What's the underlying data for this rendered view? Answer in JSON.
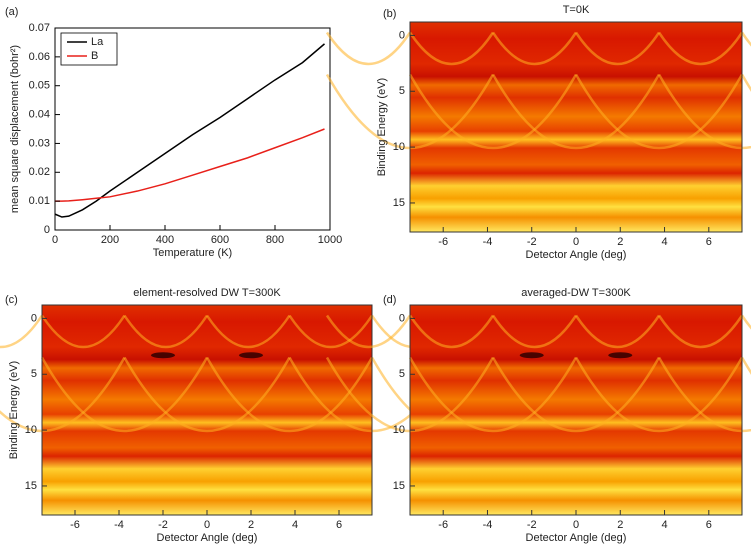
{
  "chart_data": [
    {
      "type": "line",
      "panel_label": "(a)",
      "x_label": "Temperature (K)",
      "y_label": "mean square displacement (bohr²)",
      "x": [
        0,
        25,
        50,
        100,
        150,
        200,
        300,
        400,
        500,
        600,
        700,
        800,
        900,
        980
      ],
      "series": [
        {
          "name": "La",
          "color": "#000000",
          "values": [
            0.0055,
            0.0045,
            0.0048,
            0.007,
            0.01,
            0.0135,
            0.02,
            0.0265,
            0.033,
            0.039,
            0.0455,
            0.052,
            0.058,
            0.0645
          ]
        },
        {
          "name": "B",
          "color": "#e8201a",
          "values": [
            0.01,
            0.01,
            0.0101,
            0.0105,
            0.011,
            0.0115,
            0.0135,
            0.016,
            0.019,
            0.022,
            0.025,
            0.0285,
            0.032,
            0.035
          ]
        }
      ],
      "xlim": [
        0,
        1000
      ],
      "xticks": [
        0,
        200,
        400,
        600,
        800,
        1000
      ],
      "ylim": [
        0,
        0.07
      ],
      "yticks": [
        0,
        0.01,
        0.02,
        0.03,
        0.04,
        0.05,
        0.06,
        0.07
      ],
      "legend": "upper-left"
    },
    {
      "type": "heatmap",
      "panel_label": "(b)",
      "title": "T=0K",
      "x_label": "Detector Angle (deg)",
      "y_label": "Binding Energy (eV)",
      "xlim": [
        -7.5,
        7.5
      ],
      "xticks": [
        -6,
        -4,
        -2,
        0,
        2,
        4,
        6
      ],
      "ylim": [
        17.6,
        -1.2
      ],
      "yticks": [
        0,
        5,
        10,
        15
      ]
    },
    {
      "type": "heatmap",
      "panel_label": "(c)",
      "title": "element-resolved DW T=300K",
      "x_label": "Detector Angle (deg)",
      "y_label": "Binding Energy (eV)",
      "xlim": [
        -7.5,
        7.5
      ],
      "xticks": [
        -6,
        -4,
        -2,
        0,
        2,
        4,
        6
      ],
      "ylim": [
        17.6,
        -1.2
      ],
      "yticks": [
        0,
        5,
        10,
        15
      ]
    },
    {
      "type": "heatmap",
      "panel_label": "(d)",
      "title": "averaged-DW T=300K",
      "x_label": "Detector Angle (deg)",
      "xlim": [
        -7.5,
        7.5
      ],
      "xticks": [
        -6,
        -4,
        -2,
        0,
        2,
        4,
        6
      ],
      "ylim": [
        17.6,
        -1.2
      ],
      "yticks": [
        0,
        5,
        10,
        15
      ]
    }
  ]
}
